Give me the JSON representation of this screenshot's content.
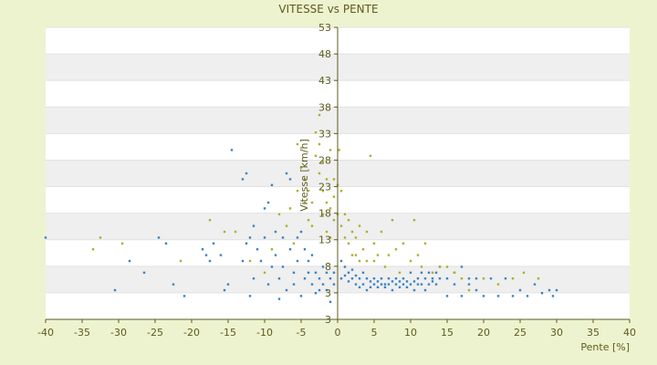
{
  "chart_data": {
    "type": "scatter",
    "title": "VITESSE vs PENTE",
    "xlabel": "Pente [%]",
    "ylabel": "Vitesse [km/h]",
    "xlim": [
      -40,
      40
    ],
    "ylim": [
      3,
      53
    ],
    "x_ticks": [
      "-40",
      "-35",
      "-30",
      "-25",
      "-20",
      "-15",
      "-10",
      "-5",
      "0",
      "5",
      "10",
      "15",
      "20",
      "25",
      "30",
      "35",
      "40"
    ],
    "y_ticks": [
      "3",
      "3",
      "8",
      "13",
      "18",
      "23",
      "28",
      "33",
      "38",
      "43",
      "48",
      "53"
    ],
    "grid": "horizontal alternating bands",
    "legend": "none",
    "colors": {
      "series_1": "#3a82c4",
      "series_2": "#b0ae2a",
      "axis": "#5c5c1e",
      "band": "#efefef",
      "background": "#eef3cf"
    },
    "series": [
      {
        "marker_color": "#3a82c4",
        "points": [
          [
            -40,
            17
          ],
          [
            -30.5,
            8
          ],
          [
            -28.5,
            13
          ],
          [
            -26.5,
            11
          ],
          [
            -24.5,
            17
          ],
          [
            -23.5,
            16
          ],
          [
            -22.5,
            9
          ],
          [
            -21,
            7
          ],
          [
            -18.5,
            15
          ],
          [
            -18,
            14
          ],
          [
            -17.5,
            13
          ],
          [
            -17,
            16
          ],
          [
            -16,
            14
          ],
          [
            -15.5,
            8
          ],
          [
            -15,
            9
          ],
          [
            -14.5,
            32
          ],
          [
            -13,
            27
          ],
          [
            -13,
            13
          ],
          [
            -12.5,
            28
          ],
          [
            -12.5,
            16
          ],
          [
            -12,
            17
          ],
          [
            -12,
            7
          ],
          [
            -11.5,
            19
          ],
          [
            -11.5,
            10
          ],
          [
            -11,
            15
          ],
          [
            -10.5,
            13
          ],
          [
            -10,
            22
          ],
          [
            -10,
            17
          ],
          [
            -9.5,
            23
          ],
          [
            -9.5,
            9
          ],
          [
            -9,
            26
          ],
          [
            -9,
            12
          ],
          [
            -8.5,
            18
          ],
          [
            -8.5,
            14
          ],
          [
            -8,
            10
          ],
          [
            -8,
            6.5
          ],
          [
            -7.5,
            17
          ],
          [
            -7.5,
            12
          ],
          [
            -7,
            28
          ],
          [
            -7,
            8
          ],
          [
            -6.5,
            27
          ],
          [
            -6.5,
            15
          ],
          [
            -6,
            11
          ],
          [
            -6,
            9
          ],
          [
            -5.5,
            17
          ],
          [
            -5.5,
            13
          ],
          [
            -5,
            18
          ],
          [
            -5,
            7
          ],
          [
            -4.5,
            15
          ],
          [
            -4.5,
            10
          ],
          [
            -4,
            13
          ],
          [
            -4,
            11
          ],
          [
            -3.5,
            9
          ],
          [
            -3.5,
            14
          ],
          [
            -3,
            11
          ],
          [
            -3,
            7.5
          ],
          [
            -2.5,
            10
          ],
          [
            -2.5,
            8
          ],
          [
            -2,
            12
          ],
          [
            -2,
            9
          ],
          [
            -1.5,
            11
          ],
          [
            -1.5,
            8
          ],
          [
            -1,
            10
          ],
          [
            -1,
            6
          ],
          [
            -0.5,
            11
          ],
          [
            -0.5,
            9
          ],
          [
            0.5,
            13
          ],
          [
            0.5,
            10
          ],
          [
            1,
            12
          ],
          [
            1,
            10.5
          ],
          [
            1.5,
            11
          ],
          [
            1.5,
            9.5
          ],
          [
            2,
            10
          ],
          [
            2,
            11.5
          ],
          [
            2.5,
            9
          ],
          [
            2.5,
            10.5
          ],
          [
            3,
            10
          ],
          [
            3,
            8.5
          ],
          [
            3.5,
            11
          ],
          [
            3.5,
            9
          ],
          [
            4,
            10
          ],
          [
            4,
            8
          ],
          [
            4.5,
            9.5
          ],
          [
            4.5,
            8.5
          ],
          [
            5,
            10
          ],
          [
            5,
            9
          ],
          [
            5.5,
            8.5
          ],
          [
            5.5,
            9.5
          ],
          [
            6,
            9
          ],
          [
            6,
            10
          ],
          [
            6.5,
            8.5
          ],
          [
            6.5,
            9
          ],
          [
            7,
            9
          ],
          [
            7,
            10
          ],
          [
            7.5,
            8
          ],
          [
            7.5,
            9.5
          ],
          [
            8,
            9
          ],
          [
            8,
            10
          ],
          [
            8.5,
            8.5
          ],
          [
            8.5,
            9.5
          ],
          [
            9,
            9
          ],
          [
            9,
            10
          ],
          [
            9.5,
            8.5
          ],
          [
            9.5,
            9.5
          ],
          [
            10,
            9
          ],
          [
            10,
            11
          ],
          [
            10.5,
            9.5
          ],
          [
            10.5,
            8
          ],
          [
            11,
            10
          ],
          [
            11,
            9
          ],
          [
            11.5,
            9
          ],
          [
            11.5,
            11
          ],
          [
            12,
            10
          ],
          [
            12,
            8
          ],
          [
            12.5,
            11
          ],
          [
            12.5,
            9
          ],
          [
            13,
            10
          ],
          [
            13,
            9.5
          ],
          [
            13.5,
            11
          ],
          [
            13.5,
            9
          ],
          [
            14,
            10
          ],
          [
            14,
            12
          ],
          [
            15,
            10
          ],
          [
            15,
            7
          ],
          [
            16,
            9
          ],
          [
            16,
            11
          ],
          [
            17,
            12
          ],
          [
            17,
            7
          ],
          [
            18,
            10
          ],
          [
            18,
            9
          ],
          [
            19,
            10
          ],
          [
            19,
            8
          ],
          [
            20,
            7
          ],
          [
            21,
            10
          ],
          [
            22,
            7
          ],
          [
            23,
            10
          ],
          [
            24,
            7
          ],
          [
            25,
            8
          ],
          [
            26,
            7
          ],
          [
            27,
            9
          ],
          [
            28,
            7.5
          ],
          [
            29,
            8
          ],
          [
            29.5,
            7
          ],
          [
            30,
            8
          ]
        ]
      },
      {
        "marker_color": "#b0ae2a",
        "points": [
          [
            -33.5,
            15
          ],
          [
            -32.5,
            17
          ],
          [
            -29.5,
            16
          ],
          [
            -21.5,
            13
          ],
          [
            -17.5,
            20
          ],
          [
            -15.5,
            18
          ],
          [
            -14,
            18
          ],
          [
            -12,
            13
          ],
          [
            -10,
            11
          ],
          [
            -9,
            15
          ],
          [
            -8,
            21
          ],
          [
            -7,
            19
          ],
          [
            -6.5,
            22
          ],
          [
            -6,
            16
          ],
          [
            -5.5,
            33
          ],
          [
            -5.5,
            25
          ],
          [
            -5,
            29
          ],
          [
            -4.5,
            27
          ],
          [
            -4.5,
            23
          ],
          [
            -4,
            25
          ],
          [
            -4,
            20
          ],
          [
            -3.5,
            23
          ],
          [
            -3.5,
            19
          ],
          [
            -3,
            35
          ],
          [
            -3,
            31
          ],
          [
            -2.5,
            38
          ],
          [
            -2.5,
            33
          ],
          [
            -2.5,
            28
          ],
          [
            -2,
            30
          ],
          [
            -2,
            25
          ],
          [
            -2,
            21
          ],
          [
            -1.5,
            27
          ],
          [
            -1.5,
            23
          ],
          [
            -1.5,
            18
          ],
          [
            -1,
            32
          ],
          [
            -1,
            22
          ],
          [
            -1,
            17
          ],
          [
            -0.5,
            27
          ],
          [
            -0.5,
            24
          ],
          [
            -0.5,
            20
          ],
          [
            0,
            26
          ],
          [
            0,
            21
          ],
          [
            0.2,
            32
          ],
          [
            0.5,
            25
          ],
          [
            0.5,
            19
          ],
          [
            1,
            21
          ],
          [
            1,
            17
          ],
          [
            1.5,
            20
          ],
          [
            1.5,
            16
          ],
          [
            2,
            18
          ],
          [
            2,
            14
          ],
          [
            2.5,
            17
          ],
          [
            2.5,
            14
          ],
          [
            3,
            19
          ],
          [
            3,
            13
          ],
          [
            3.5,
            15
          ],
          [
            4,
            18
          ],
          [
            4,
            13
          ],
          [
            4.5,
            31
          ],
          [
            5,
            16
          ],
          [
            5,
            13
          ],
          [
            5.5,
            14
          ],
          [
            6,
            18
          ],
          [
            6.5,
            12
          ],
          [
            7,
            14
          ],
          [
            7.5,
            20
          ],
          [
            8,
            15
          ],
          [
            8.5,
            11
          ],
          [
            9,
            16
          ],
          [
            10,
            13
          ],
          [
            10.5,
            20
          ],
          [
            11,
            14
          ],
          [
            11.5,
            12
          ],
          [
            12,
            16
          ],
          [
            13,
            11
          ],
          [
            14,
            12
          ],
          [
            15,
            12
          ],
          [
            16,
            11
          ],
          [
            17,
            10
          ],
          [
            18,
            8
          ],
          [
            20,
            10
          ],
          [
            22,
            9
          ],
          [
            24,
            10
          ],
          [
            25.5,
            11
          ],
          [
            27.5,
            10
          ]
        ]
      }
    ]
  }
}
